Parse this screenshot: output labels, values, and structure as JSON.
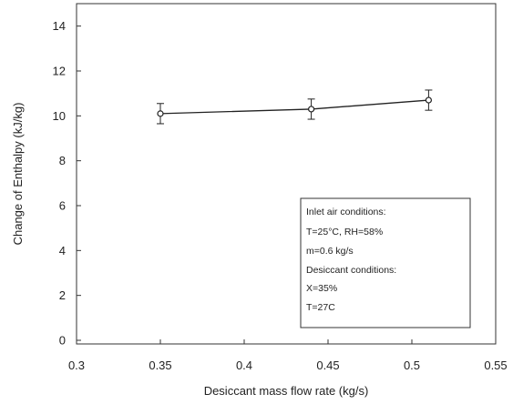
{
  "chart_data": {
    "type": "line",
    "title": "",
    "xlabel": "Desiccant mass flow rate (kg/s)",
    "ylabel": "Change of Enthalpy (kJ/kg)",
    "xlim": [
      0.3,
      0.55
    ],
    "ylim": [
      0,
      15
    ],
    "x_ticks": [
      "0.3",
      "0.35",
      "0.4",
      "0.45",
      "0.5",
      "0.55"
    ],
    "y_ticks": [
      "0",
      "2",
      "4",
      "6",
      "8",
      "10",
      "12",
      "14"
    ],
    "grid": false,
    "series": [
      {
        "x": [
          0.35,
          0.44,
          0.51
        ],
        "y": [
          10.1,
          10.3,
          10.7
        ],
        "error": [
          0.45,
          0.45,
          0.45
        ]
      }
    ],
    "legend_box": {
      "placement": "bottom-right",
      "lines": [
        "Inlet air conditions:",
        "T=25°C, RH=58%",
        "m=0.6 kg/s",
        "Desiccant conditions:",
        "X=35%",
        "T=27C"
      ]
    }
  }
}
